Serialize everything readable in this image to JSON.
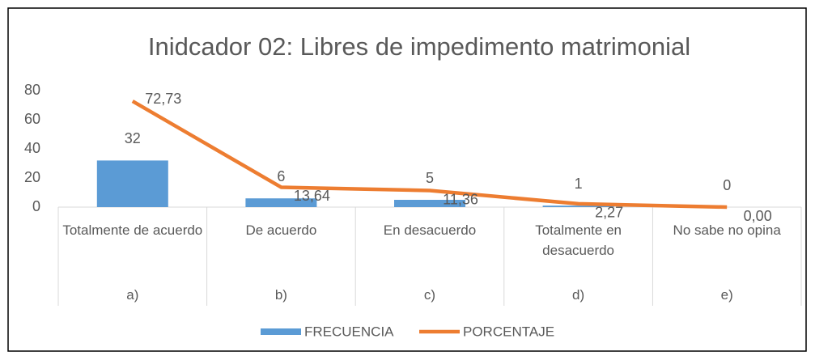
{
  "chart_data": {
    "type": "bar_line",
    "title": "Inidcador 02: Libres de impedimento matrimonial",
    "categories": [
      "Totalmente de acuerdo",
      "De acuerdo",
      "En desacuerdo",
      "Totalmente en desacuerdo",
      "No sabe no opina"
    ],
    "subcategories": [
      "a)",
      "b)",
      "c)",
      "d)",
      "e)"
    ],
    "series": [
      {
        "name": "FRECUENCIA",
        "type": "bar",
        "color": "#5b9bd5",
        "values": [
          32,
          6,
          5,
          1,
          0
        ]
      },
      {
        "name": "PORCENTAJE",
        "type": "line",
        "color": "#ed7d31",
        "values": [
          72.73,
          13.64,
          11.36,
          2.27,
          0.0
        ],
        "value_labels": [
          "72,73",
          "13,64",
          "11,36",
          "2,27",
          "0,00"
        ]
      }
    ],
    "ylim": [
      0,
      80
    ],
    "yticks": [
      0,
      20,
      40,
      60,
      80
    ],
    "grid": false,
    "legend": "bottom"
  }
}
